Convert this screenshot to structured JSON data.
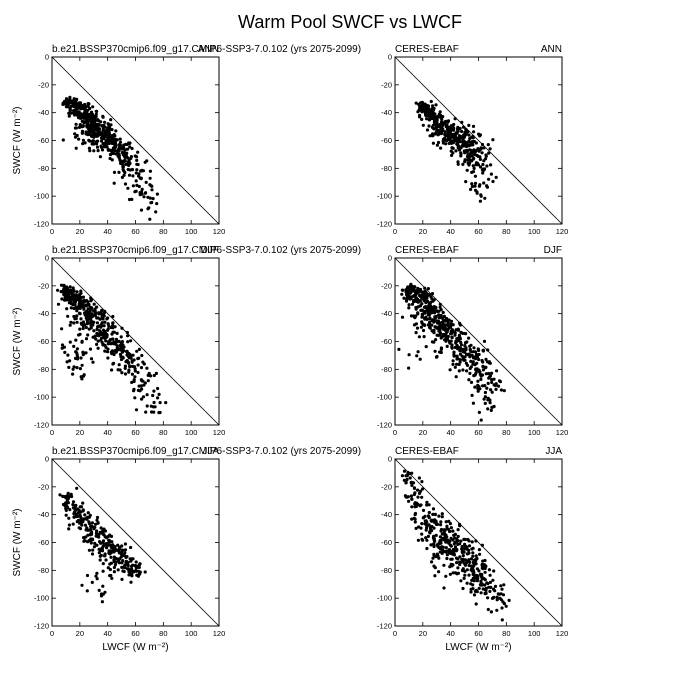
{
  "figure": {
    "title": "Warm Pool SWCF vs LWCF"
  },
  "chart_data": [
    {
      "type": "scatter",
      "case": "b.e21.BSSP370cmip6.f09_g17.CMIP6-SSP3-7.0.102 (yrs 2075-2099)",
      "season": "ANN",
      "ylabel": "SWCF (W m⁻²)",
      "xlabel": "",
      "xlim": [
        0,
        120
      ],
      "ylim": [
        -120,
        0
      ],
      "xticks": [
        0,
        20,
        40,
        60,
        80,
        100,
        120
      ],
      "yticks": [
        0,
        -20,
        -40,
        -60,
        -80,
        -100,
        -120
      ],
      "reference_line": "y = -x",
      "cloud": [
        {
          "x": 14,
          "y": -33,
          "n": 40,
          "sx": 3,
          "sy": 2
        },
        {
          "x": 20,
          "y": -38,
          "n": 70,
          "sx": 4,
          "sy": 3
        },
        {
          "x": 26,
          "y": -45,
          "n": 90,
          "sx": 4,
          "sy": 4
        },
        {
          "x": 32,
          "y": -52,
          "n": 90,
          "sx": 5,
          "sy": 4
        },
        {
          "x": 40,
          "y": -60,
          "n": 80,
          "sx": 5,
          "sy": 4
        },
        {
          "x": 48,
          "y": -68,
          "n": 60,
          "sx": 5,
          "sy": 4
        },
        {
          "x": 56,
          "y": -78,
          "n": 45,
          "sx": 5,
          "sy": 5
        },
        {
          "x": 64,
          "y": -90,
          "n": 30,
          "sx": 5,
          "sy": 6
        },
        {
          "x": 70,
          "y": -102,
          "n": 18,
          "sx": 4,
          "sy": 6
        },
        {
          "x": 22,
          "y": -60,
          "n": 15,
          "sx": 6,
          "sy": 4
        }
      ]
    },
    {
      "type": "scatter",
      "case": "CERES-EBAF",
      "season": "ANN",
      "ylabel": "",
      "xlabel": "",
      "xlim": [
        0,
        120
      ],
      "ylim": [
        -120,
        0
      ],
      "xticks": [
        0,
        20,
        40,
        60,
        80,
        100,
        120
      ],
      "yticks": [
        0,
        -20,
        -40,
        -60,
        -80,
        -100,
        -120
      ],
      "reference_line": "y = -x",
      "cloud": [
        {
          "x": 20,
          "y": -36,
          "n": 40,
          "sx": 3,
          "sy": 2
        },
        {
          "x": 26,
          "y": -42,
          "n": 60,
          "sx": 4,
          "sy": 3
        },
        {
          "x": 32,
          "y": -50,
          "n": 70,
          "sx": 4,
          "sy": 4
        },
        {
          "x": 40,
          "y": -56,
          "n": 80,
          "sx": 5,
          "sy": 5
        },
        {
          "x": 48,
          "y": -62,
          "n": 70,
          "sx": 6,
          "sy": 6
        },
        {
          "x": 55,
          "y": -70,
          "n": 60,
          "sx": 6,
          "sy": 8
        },
        {
          "x": 62,
          "y": -78,
          "n": 40,
          "sx": 5,
          "sy": 9
        },
        {
          "x": 60,
          "y": -95,
          "n": 10,
          "sx": 4,
          "sy": 5
        }
      ]
    },
    {
      "type": "scatter",
      "case": "b.e21.BSSP370cmip6.f09_g17.CMIP6-SSP3-7.0.102 (yrs 2075-2099)",
      "season": "DJF",
      "ylabel": "SWCF (W m⁻²)",
      "xlabel": "",
      "xlim": [
        0,
        120
      ],
      "ylim": [
        -120,
        0
      ],
      "xticks": [
        0,
        20,
        40,
        60,
        80,
        100,
        120
      ],
      "yticks": [
        0,
        -20,
        -40,
        -60,
        -80,
        -100,
        -120
      ],
      "reference_line": "y = -x",
      "cloud": [
        {
          "x": 10,
          "y": -24,
          "n": 50,
          "sx": 2,
          "sy": 2
        },
        {
          "x": 16,
          "y": -28,
          "n": 60,
          "sx": 4,
          "sy": 3
        },
        {
          "x": 22,
          "y": -35,
          "n": 70,
          "sx": 5,
          "sy": 4
        },
        {
          "x": 30,
          "y": -45,
          "n": 70,
          "sx": 5,
          "sy": 5
        },
        {
          "x": 38,
          "y": -55,
          "n": 60,
          "sx": 5,
          "sy": 5
        },
        {
          "x": 46,
          "y": -65,
          "n": 55,
          "sx": 5,
          "sy": 5
        },
        {
          "x": 55,
          "y": -75,
          "n": 45,
          "sx": 5,
          "sy": 6
        },
        {
          "x": 64,
          "y": -88,
          "n": 30,
          "sx": 5,
          "sy": 6
        },
        {
          "x": 74,
          "y": -102,
          "n": 20,
          "sx": 5,
          "sy": 6
        },
        {
          "x": 14,
          "y": -65,
          "n": 25,
          "sx": 4,
          "sy": 12
        },
        {
          "x": 22,
          "y": -70,
          "n": 20,
          "sx": 5,
          "sy": 10
        }
      ]
    },
    {
      "type": "scatter",
      "case": "CERES-EBAF",
      "season": "DJF",
      "ylabel": "",
      "xlabel": "",
      "xlim": [
        0,
        120
      ],
      "ylim": [
        -120,
        0
      ],
      "xticks": [
        0,
        20,
        40,
        60,
        80,
        100,
        120
      ],
      "yticks": [
        0,
        -20,
        -40,
        -60,
        -80,
        -100,
        -120
      ],
      "reference_line": "y = -x",
      "cloud": [
        {
          "x": 10,
          "y": -23,
          "n": 45,
          "sx": 2,
          "sy": 2
        },
        {
          "x": 16,
          "y": -28,
          "n": 60,
          "sx": 4,
          "sy": 3
        },
        {
          "x": 22,
          "y": -35,
          "n": 70,
          "sx": 5,
          "sy": 5
        },
        {
          "x": 30,
          "y": -46,
          "n": 80,
          "sx": 6,
          "sy": 6
        },
        {
          "x": 40,
          "y": -56,
          "n": 80,
          "sx": 6,
          "sy": 7
        },
        {
          "x": 50,
          "y": -68,
          "n": 70,
          "sx": 6,
          "sy": 8
        },
        {
          "x": 60,
          "y": -80,
          "n": 60,
          "sx": 6,
          "sy": 9
        },
        {
          "x": 68,
          "y": -95,
          "n": 35,
          "sx": 4,
          "sy": 9
        },
        {
          "x": 14,
          "y": -55,
          "n": 15,
          "sx": 4,
          "sy": 8
        }
      ]
    },
    {
      "type": "scatter",
      "case": "b.e21.BSSP370cmip6.f09_g17.CMIP6-SSP3-7.0.102 (yrs 2075-2099)",
      "season": "JJA",
      "ylabel": "SWCF (W m⁻²)",
      "xlabel": "LWCF (W m⁻²)",
      "xlim": [
        0,
        120
      ],
      "ylim": [
        -120,
        0
      ],
      "xticks": [
        0,
        20,
        40,
        60,
        80,
        100,
        120
      ],
      "yticks": [
        0,
        -20,
        -40,
        -60,
        -80,
        -100,
        -120
      ],
      "reference_line": "y = -x",
      "cloud": [
        {
          "x": 13,
          "y": -32,
          "n": 30,
          "sx": 3,
          "sy": 4
        },
        {
          "x": 20,
          "y": -42,
          "n": 40,
          "sx": 4,
          "sy": 5
        },
        {
          "x": 28,
          "y": -52,
          "n": 50,
          "sx": 5,
          "sy": 6
        },
        {
          "x": 36,
          "y": -60,
          "n": 50,
          "sx": 5,
          "sy": 6
        },
        {
          "x": 44,
          "y": -68,
          "n": 50,
          "sx": 5,
          "sy": 6
        },
        {
          "x": 52,
          "y": -75,
          "n": 40,
          "sx": 5,
          "sy": 5
        },
        {
          "x": 60,
          "y": -80,
          "n": 25,
          "sx": 4,
          "sy": 4
        },
        {
          "x": 32,
          "y": -88,
          "n": 20,
          "sx": 6,
          "sy": 8
        }
      ]
    },
    {
      "type": "scatter",
      "case": "CERES-EBAF",
      "season": "JJA",
      "ylabel": "",
      "xlabel": "LWCF (W m⁻²)",
      "xlim": [
        0,
        120
      ],
      "ylim": [
        -120,
        0
      ],
      "xticks": [
        0,
        20,
        40,
        60,
        80,
        100,
        120
      ],
      "yticks": [
        0,
        -20,
        -40,
        -60,
        -80,
        -100,
        -120
      ],
      "reference_line": "y = -x",
      "cloud": [
        {
          "x": 9,
          "y": -14,
          "n": 15,
          "sx": 2,
          "sy": 3
        },
        {
          "x": 15,
          "y": -28,
          "n": 30,
          "sx": 4,
          "sy": 6
        },
        {
          "x": 22,
          "y": -42,
          "n": 45,
          "sx": 5,
          "sy": 7
        },
        {
          "x": 30,
          "y": -55,
          "n": 55,
          "sx": 6,
          "sy": 7
        },
        {
          "x": 40,
          "y": -58,
          "n": 70,
          "sx": 6,
          "sy": 6
        },
        {
          "x": 48,
          "y": -68,
          "n": 70,
          "sx": 6,
          "sy": 7
        },
        {
          "x": 56,
          "y": -80,
          "n": 60,
          "sx": 6,
          "sy": 7
        },
        {
          "x": 64,
          "y": -90,
          "n": 40,
          "sx": 5,
          "sy": 6
        },
        {
          "x": 74,
          "y": -100,
          "n": 25,
          "sx": 5,
          "sy": 5
        },
        {
          "x": 35,
          "y": -82,
          "n": 20,
          "sx": 6,
          "sy": 8
        }
      ]
    }
  ]
}
